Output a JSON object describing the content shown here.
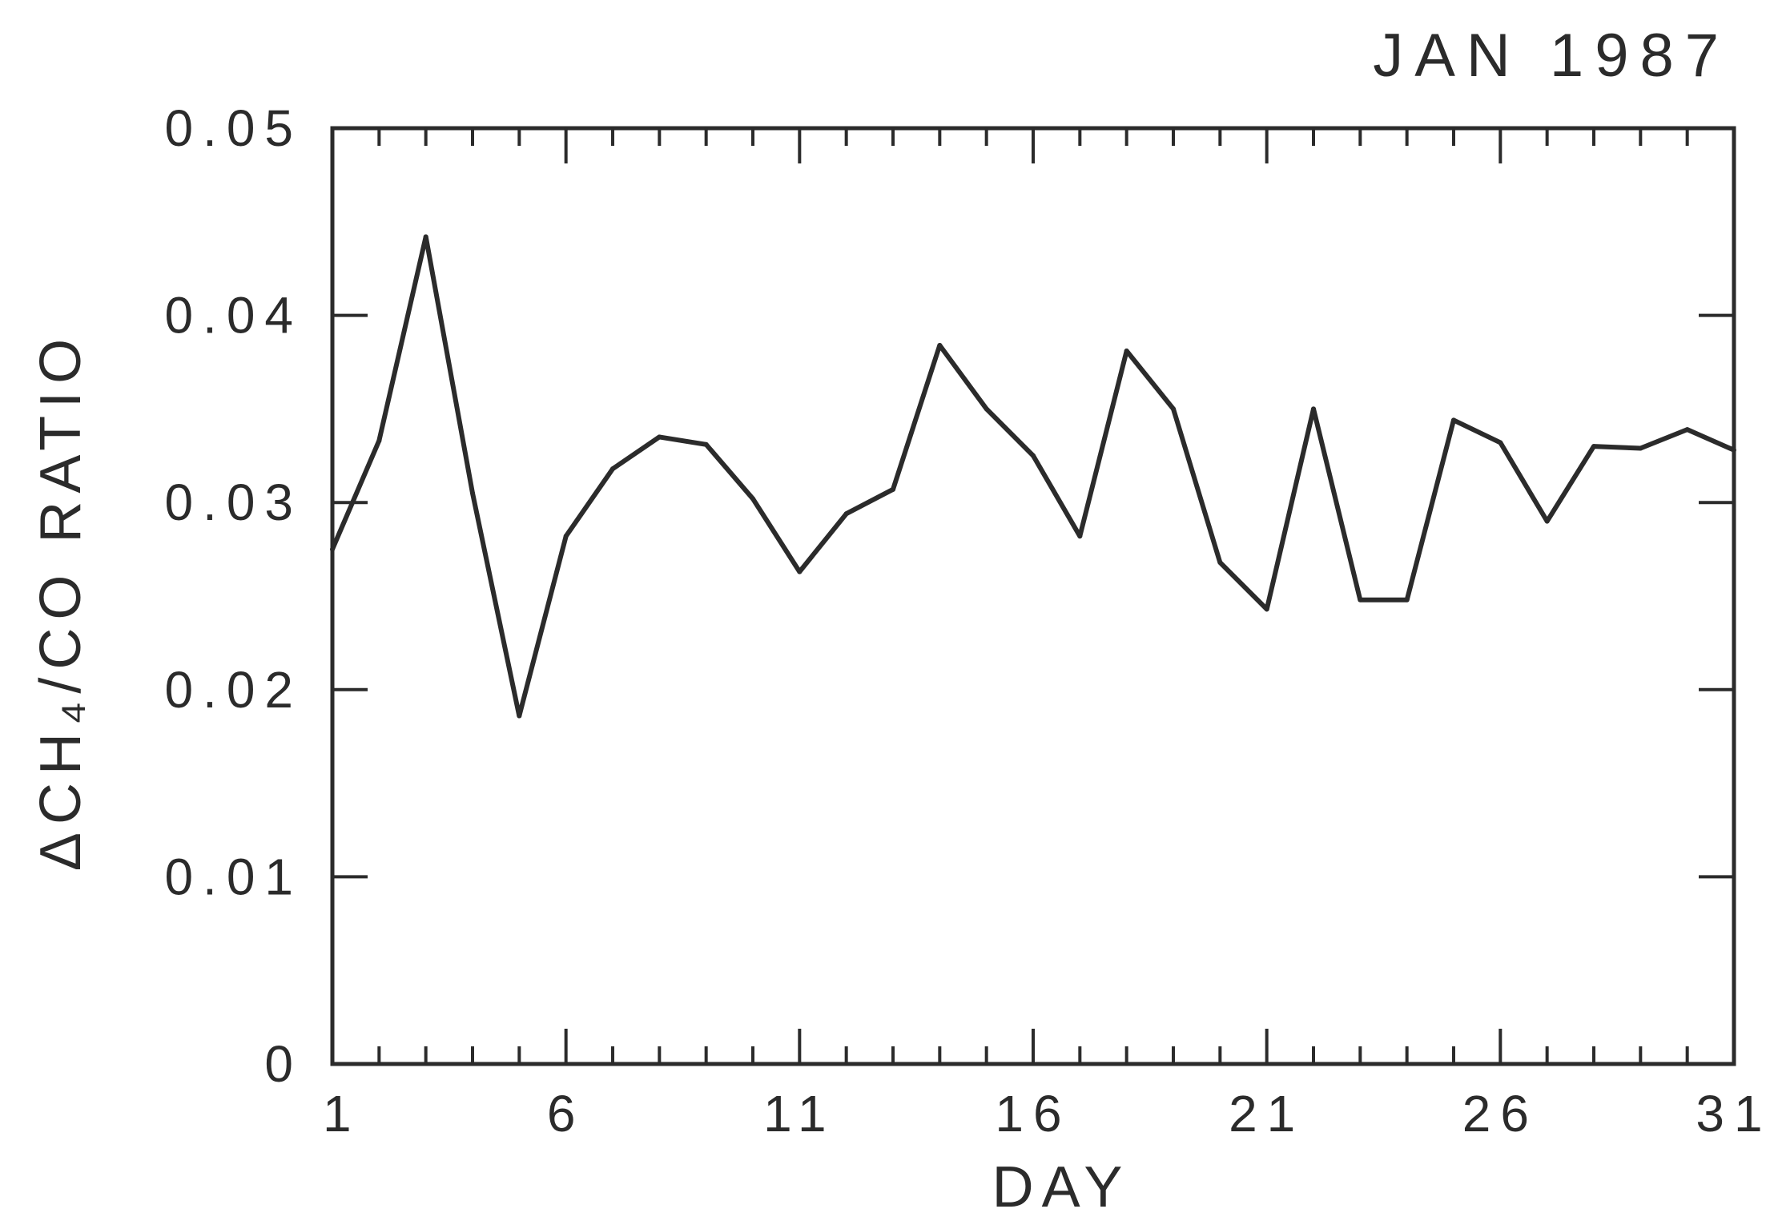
{
  "chart_data": {
    "type": "line",
    "title": "JAN 1987",
    "xlabel": "DAY",
    "ylabel": "ΔCH₄/CO RATIO",
    "xlim": [
      1,
      31
    ],
    "ylim": [
      0,
      0.05
    ],
    "x_ticks": [
      1,
      6,
      11,
      16,
      21,
      26,
      31
    ],
    "x_tick_labels": [
      "1",
      "6",
      "11",
      "16",
      "21",
      "26",
      "31"
    ],
    "y_ticks": [
      0,
      0.01,
      0.02,
      0.03,
      0.04,
      0.05
    ],
    "y_tick_labels": [
      "0",
      "0.01",
      "0.02",
      "0.03",
      "0.04",
      "0.05"
    ],
    "grid": false,
    "x": [
      1,
      2,
      3,
      4,
      5,
      6,
      7,
      8,
      9,
      10,
      11,
      12,
      13,
      14,
      15,
      16,
      17,
      18,
      19,
      20,
      21,
      22,
      23,
      24,
      25,
      26,
      27,
      28,
      29,
      30,
      31
    ],
    "values": [
      0.0275,
      0.0333,
      0.0442,
      0.0305,
      0.0186,
      0.0282,
      0.0318,
      0.0335,
      0.0331,
      0.0302,
      0.0263,
      0.0294,
      0.0307,
      0.0384,
      0.035,
      0.0325,
      0.0282,
      0.0381,
      0.035,
      0.0268,
      0.0243,
      0.035,
      0.0248,
      0.0248,
      0.0344,
      0.0332,
      0.029,
      0.033,
      0.0329,
      0.0339,
      0.0328
    ]
  }
}
